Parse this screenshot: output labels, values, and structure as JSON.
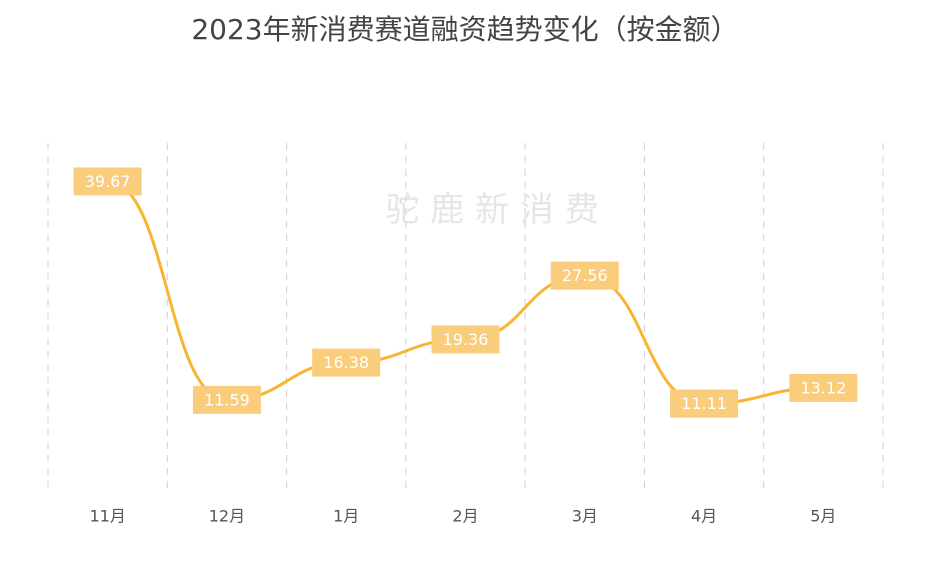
{
  "chart_data": {
    "type": "line",
    "title": "2023年新消费赛道融资趋势变化（按金额）",
    "watermark": "驼 鹿 新 消 费",
    "categories": [
      "11月",
      "12月",
      "1月",
      "2月",
      "3月",
      "4月",
      "5月"
    ],
    "values": [
      39.67,
      11.59,
      16.38,
      19.36,
      27.56,
      11.11,
      13.12
    ],
    "color": "#f7b534",
    "label_color": "#f9cd7c",
    "ylim": [
      0,
      45
    ]
  }
}
